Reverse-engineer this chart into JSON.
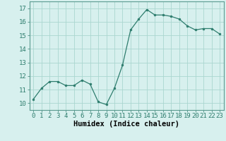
{
  "x": [
    0,
    1,
    2,
    3,
    4,
    5,
    6,
    7,
    8,
    9,
    10,
    11,
    12,
    13,
    14,
    15,
    16,
    17,
    18,
    19,
    20,
    21,
    22,
    23
  ],
  "y": [
    10.3,
    11.1,
    11.6,
    11.6,
    11.3,
    11.3,
    11.7,
    11.4,
    10.1,
    9.9,
    11.1,
    12.8,
    15.4,
    16.2,
    16.9,
    16.5,
    16.5,
    16.4,
    16.2,
    15.7,
    15.4,
    15.5,
    15.5,
    15.1
  ],
  "line_color": "#2e7d6e",
  "marker_color": "#2e7d6e",
  "bg_color": "#d7f0ee",
  "grid_color": "#aad6d0",
  "xlabel": "Humidex (Indice chaleur)",
  "ylim": [
    9.5,
    17.5
  ],
  "xlim": [
    -0.5,
    23.5
  ],
  "yticks": [
    10,
    11,
    12,
    13,
    14,
    15,
    16,
    17
  ],
  "font_size": 6.5,
  "xlabel_fontsize": 7.5
}
